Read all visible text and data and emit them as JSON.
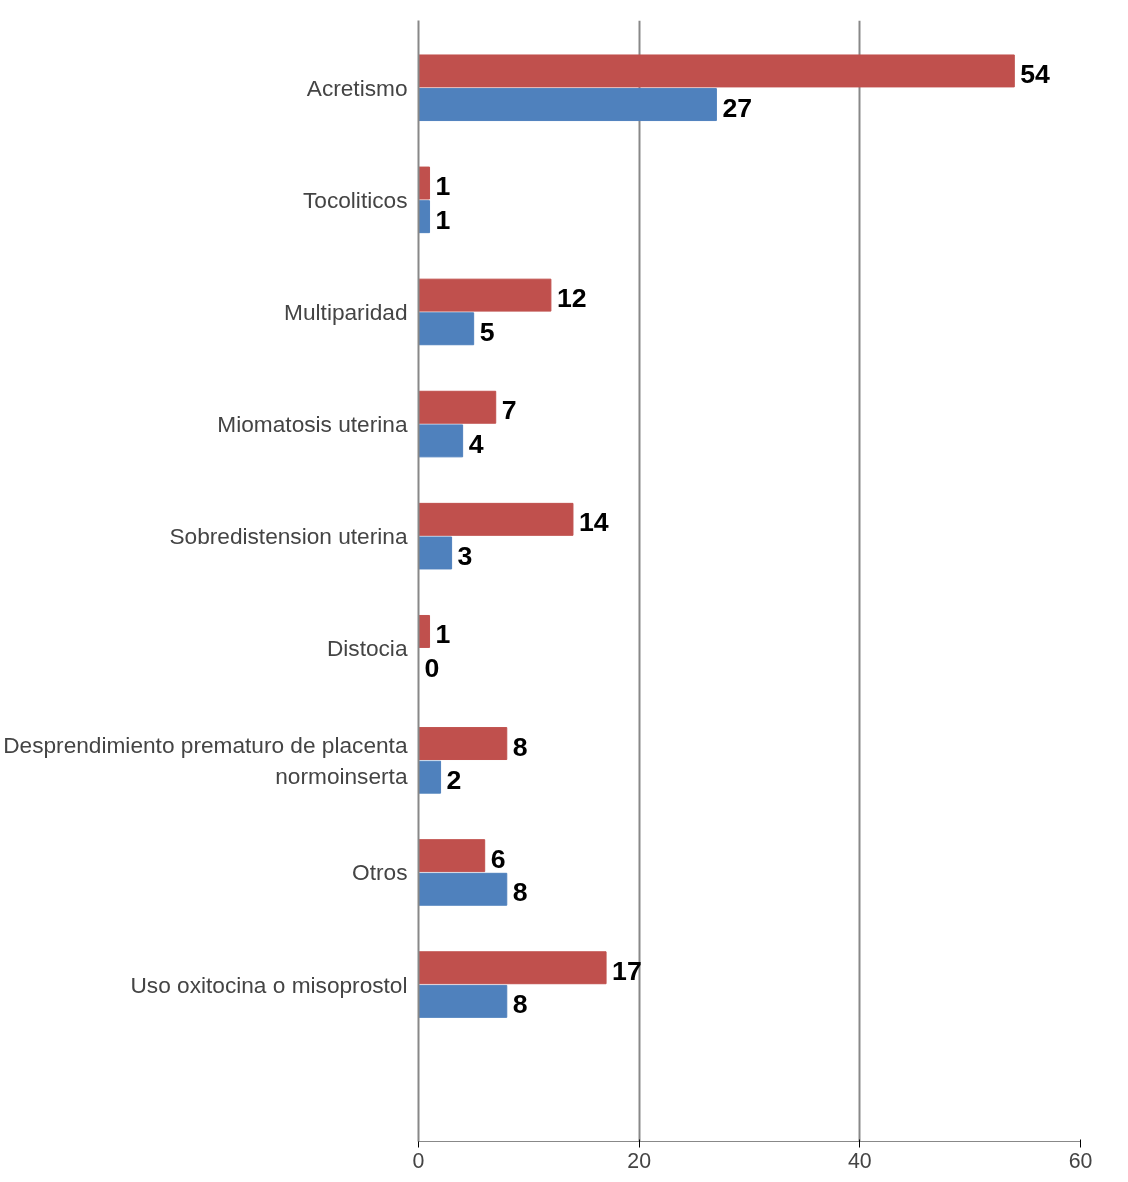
{
  "chart_data": {
    "type": "bar",
    "orientation": "horizontal",
    "categories": [
      "Acretismo",
      "Tocoliticos",
      "Multiparidad",
      "Miomatosis uterina",
      "Sobredistension uterina",
      "Distocia",
      "Desprendimiento prematuro de placenta normoinserta",
      "Otros",
      "Uso oxitocina o misoprostol"
    ],
    "series": [
      {
        "color": "#c0504d",
        "values": [
          54,
          1,
          12,
          7,
          14,
          1,
          8,
          6,
          17
        ]
      },
      {
        "color": "#4f81bd",
        "values": [
          27,
          1,
          5,
          4,
          3,
          0,
          2,
          8,
          8
        ]
      }
    ],
    "xlim": [
      0,
      60
    ],
    "xticks": [
      0,
      20,
      40,
      60
    ],
    "grid": "x",
    "data_labels": true
  }
}
